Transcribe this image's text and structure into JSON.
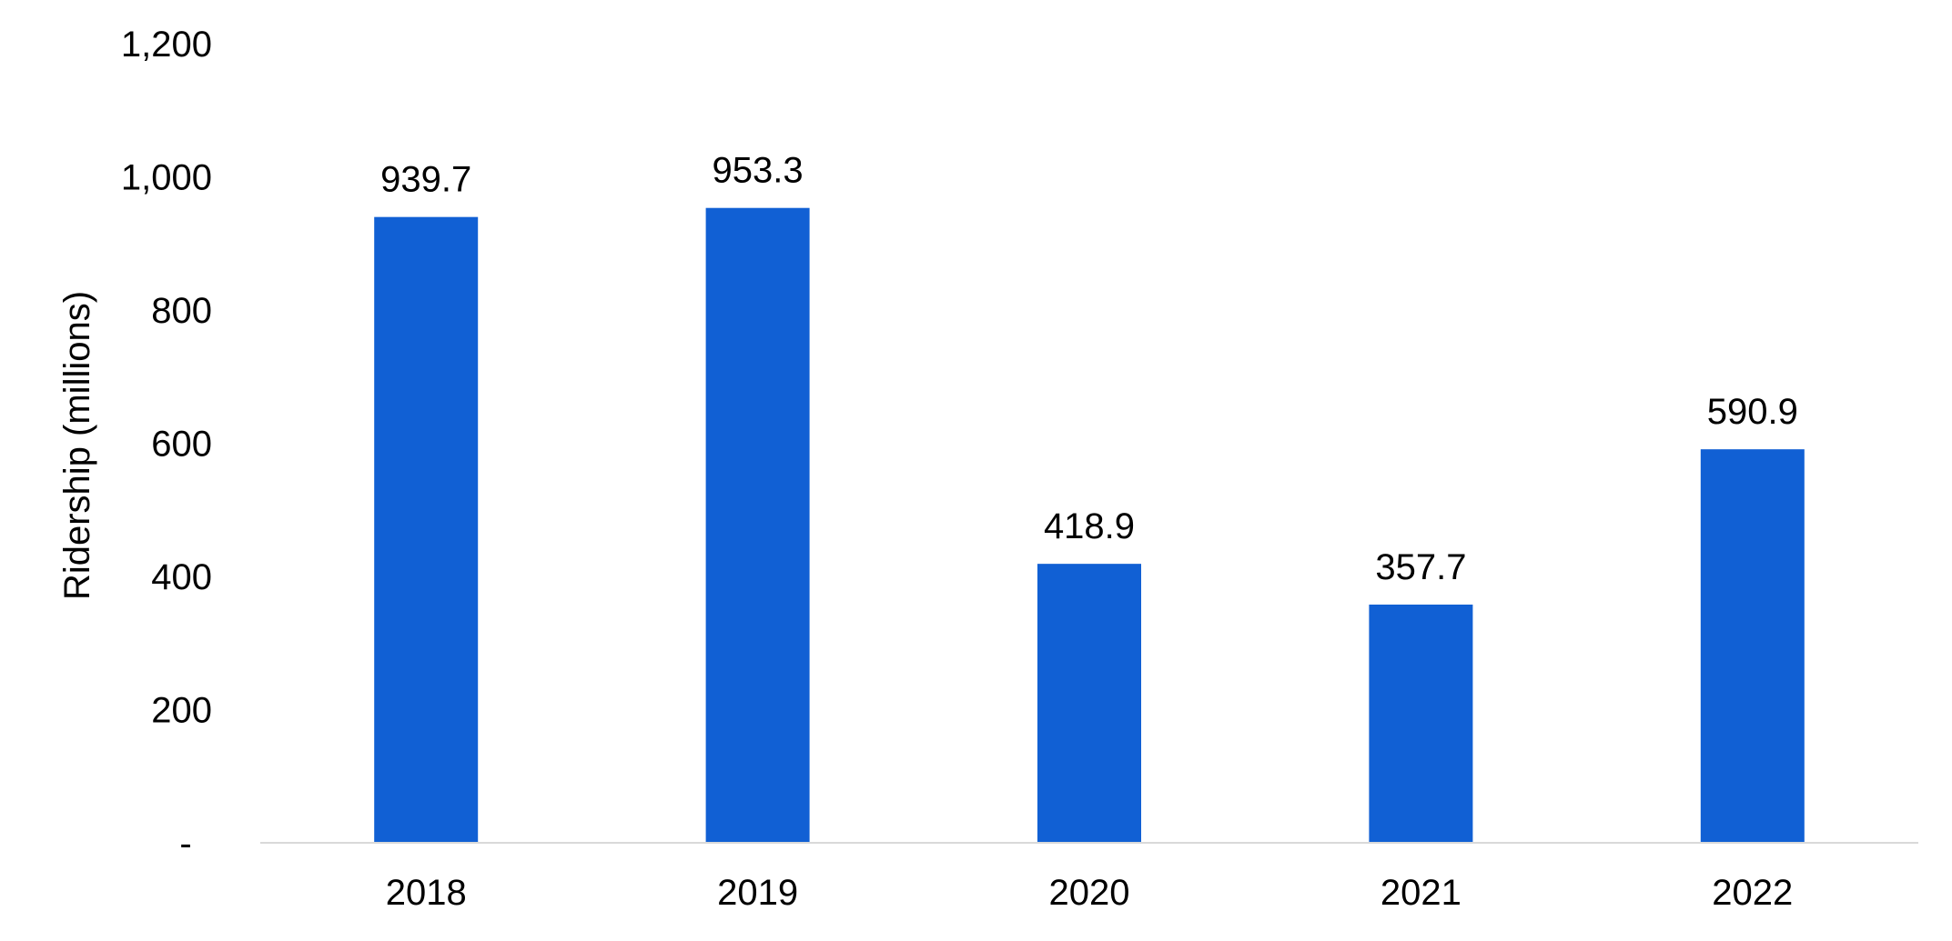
{
  "chart_data": {
    "type": "bar",
    "categories": [
      "2018",
      "2019",
      "2020",
      "2021",
      "2022"
    ],
    "values": [
      939.7,
      953.3,
      418.9,
      357.7,
      590.9
    ],
    "data_labels": [
      "939.7",
      "953.3",
      "418.9",
      "357.7",
      "590.9"
    ],
    "ylabel": "Ridership (millions)",
    "ylim": [
      0,
      1200
    ],
    "yticks": [
      0,
      200,
      400,
      600,
      800,
      1000,
      1200
    ],
    "ytick_labels": [
      "-",
      "200",
      "400",
      "600",
      "800",
      "1,000",
      "1,200"
    ],
    "grid": false,
    "legend": "none",
    "bar_color": "#1160d4",
    "baseline_color": "#d9d9d9"
  }
}
